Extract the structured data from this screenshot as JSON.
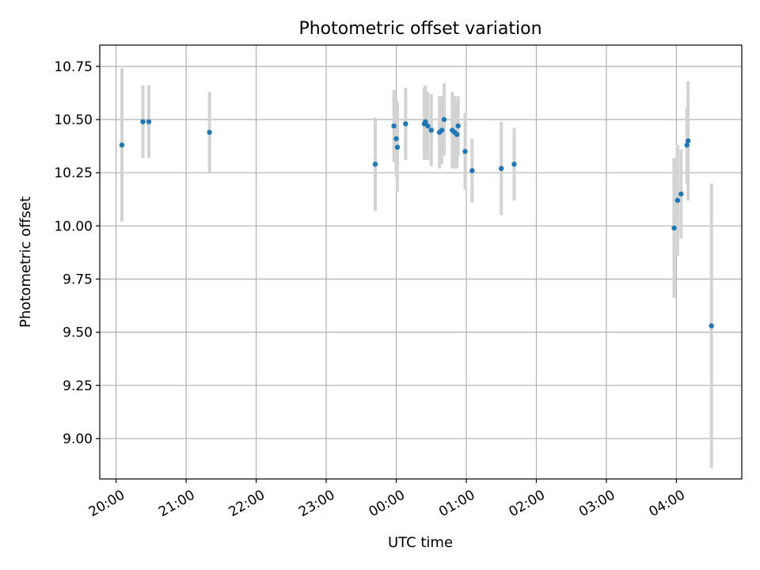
{
  "chart_data": {
    "type": "scatter",
    "title": "Photometric offset variation",
    "xlabel": "UTC time",
    "ylabel": "Photometric offset",
    "x_ticks": [
      "20:00",
      "21:00",
      "22:00",
      "23:00",
      "00:00",
      "01:00",
      "02:00",
      "03:00",
      "04:00"
    ],
    "y_ticks": [
      "9.00",
      "9.25",
      "9.50",
      "9.75",
      "10.00",
      "10.25",
      "10.50",
      "10.75"
    ],
    "xlim": [
      "19:46",
      "04:56"
    ],
    "ylim": [
      8.81,
      10.85
    ],
    "grid": true,
    "colors": {
      "points": "#1f77b4",
      "errorbars": "#d3d3d3",
      "grid": "#b0b0b0"
    },
    "series": [
      {
        "points": [
          {
            "x": "20:05",
            "y": 10.38,
            "err": 0.36
          },
          {
            "x": "20:23",
            "y": 10.49,
            "err": 0.17
          },
          {
            "x": "20:28",
            "y": 10.49,
            "err": 0.17
          },
          {
            "x": "21:20",
            "y": 10.44,
            "err": 0.19
          },
          {
            "x": "23:42",
            "y": 10.29,
            "err": 0.22
          },
          {
            "x": "23:58",
            "y": 10.47,
            "err": 0.17
          },
          {
            "x": "00:00",
            "y": 10.41,
            "err": 0.18
          },
          {
            "x": "00:01",
            "y": 10.37,
            "err": 0.21
          },
          {
            "x": "00:08",
            "y": 10.48,
            "err": 0.17
          },
          {
            "x": "00:24",
            "y": 10.48,
            "err": 0.17
          },
          {
            "x": "00:25",
            "y": 10.49,
            "err": 0.17
          },
          {
            "x": "00:27",
            "y": 10.47,
            "err": 0.16
          },
          {
            "x": "00:30",
            "y": 10.45,
            "err": 0.17
          },
          {
            "x": "00:37",
            "y": 10.44,
            "err": 0.17
          },
          {
            "x": "00:39",
            "y": 10.45,
            "err": 0.16
          },
          {
            "x": "00:41",
            "y": 10.5,
            "err": 0.17
          },
          {
            "x": "00:48",
            "y": 10.45,
            "err": 0.18
          },
          {
            "x": "00:50",
            "y": 10.44,
            "err": 0.17
          },
          {
            "x": "00:52",
            "y": 10.43,
            "err": 0.16
          },
          {
            "x": "00:53",
            "y": 10.47,
            "err": 0.14
          },
          {
            "x": "00:59",
            "y": 10.35,
            "err": 0.18
          },
          {
            "x": "01:05",
            "y": 10.26,
            "err": 0.15
          },
          {
            "x": "01:30",
            "y": 10.27,
            "err": 0.22
          },
          {
            "x": "01:41",
            "y": 10.29,
            "err": 0.17
          },
          {
            "x": "03:58",
            "y": 9.99,
            "err": 0.33
          },
          {
            "x": "04:01",
            "y": 10.12,
            "err": 0.26
          },
          {
            "x": "04:04",
            "y": 10.15,
            "err": 0.21
          },
          {
            "x": "04:09",
            "y": 10.38,
            "err": 0.18
          },
          {
            "x": "04:10",
            "y": 10.4,
            "err": 0.28
          },
          {
            "x": "04:30",
            "y": 9.53,
            "err": 0.67
          }
        ]
      }
    ]
  }
}
